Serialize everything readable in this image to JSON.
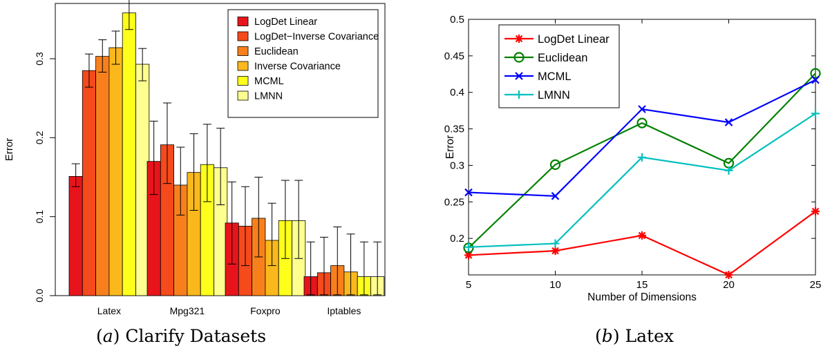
{
  "captions": {
    "a_label": "a",
    "a_text": "Clarify Datasets",
    "b_label": "b",
    "b_text": "Latex"
  },
  "chart_data": [
    {
      "type": "bar",
      "title": "",
      "xlabel": "",
      "ylabel": "Error",
      "ylim": [
        0.0,
        0.37
      ],
      "yticks": [
        0.0,
        0.1,
        0.2,
        0.3
      ],
      "ytick_labels": [
        "0.0",
        "0.1",
        "0.2",
        "0.3"
      ],
      "categories": [
        "Latex",
        "Mpg321",
        "Foxpro",
        "Iptables"
      ],
      "legend_position": "top-right",
      "series": [
        {
          "name": "LogDet Linear",
          "color": "#e8141c",
          "values": [
            0.151,
            0.17,
            0.092,
            0.024
          ],
          "err_low": [
            0.138,
            0.128,
            0.04,
            0.001
          ],
          "err_high": [
            0.167,
            0.221,
            0.144,
            0.068
          ]
        },
        {
          "name": "LogDet−Inverse Covariance",
          "color": "#f44a1c",
          "values": [
            0.285,
            0.191,
            0.088,
            0.029
          ],
          "err_low": [
            0.264,
            0.142,
            0.038,
            0.001
          ],
          "err_high": [
            0.306,
            0.244,
            0.138,
            0.074
          ]
        },
        {
          "name": "Euclidean",
          "color": "#f8801c",
          "values": [
            0.303,
            0.14,
            0.098,
            0.038
          ],
          "err_low": [
            0.283,
            0.102,
            0.049,
            0.001
          ],
          "err_high": [
            0.324,
            0.188,
            0.15,
            0.087
          ]
        },
        {
          "name": "Inverse Covariance",
          "color": "#fab81c",
          "values": [
            0.314,
            0.156,
            0.07,
            0.03
          ],
          "err_low": [
            0.293,
            0.108,
            0.038,
            0.001
          ],
          "err_high": [
            0.335,
            0.205,
            0.117,
            0.078
          ]
        },
        {
          "name": "MCML",
          "color": "#ffff1c",
          "values": [
            0.358,
            0.166,
            0.095,
            0.024
          ],
          "err_low": [
            0.337,
            0.119,
            0.047,
            0.001
          ],
          "err_high": [
            0.379,
            0.217,
            0.146,
            0.068
          ]
        },
        {
          "name": "LMNN",
          "color": "#ffff90",
          "values": [
            0.293,
            0.162,
            0.095,
            0.024
          ],
          "err_low": [
            0.272,
            0.115,
            0.047,
            0.001
          ],
          "err_high": [
            0.313,
            0.212,
            0.146,
            0.068
          ]
        }
      ]
    },
    {
      "type": "line",
      "title": "",
      "xlabel": "Number of Dimensions",
      "ylabel": "Error",
      "xlim": [
        5,
        25
      ],
      "ylim": [
        0.15,
        0.5
      ],
      "x": [
        5,
        10,
        15,
        20,
        25
      ],
      "xtick_labels": [
        "5",
        "10",
        "15",
        "20",
        "25"
      ],
      "yticks": [
        0.2,
        0.25,
        0.3,
        0.35,
        0.4,
        0.45,
        0.5
      ],
      "ytick_labels": [
        "0.2",
        "0.25",
        "0.3",
        "0.35",
        "0.4",
        "0.45",
        "0.5"
      ],
      "legend_position": "top-left",
      "series": [
        {
          "name": "LogDet Linear",
          "color": "#ff0000",
          "marker": "star",
          "values": [
            0.177,
            0.183,
            0.204,
            0.15,
            0.237
          ]
        },
        {
          "name": "Euclidean",
          "color": "#008000",
          "marker": "circle",
          "values": [
            0.187,
            0.301,
            0.358,
            0.303,
            0.426
          ]
        },
        {
          "name": "MCML",
          "color": "#0000ff",
          "marker": "x",
          "values": [
            0.263,
            0.258,
            0.377,
            0.359,
            0.417
          ]
        },
        {
          "name": "LMNN",
          "color": "#00bfbf",
          "marker": "plus",
          "values": [
            0.188,
            0.193,
            0.311,
            0.293,
            0.371
          ]
        }
      ]
    }
  ]
}
